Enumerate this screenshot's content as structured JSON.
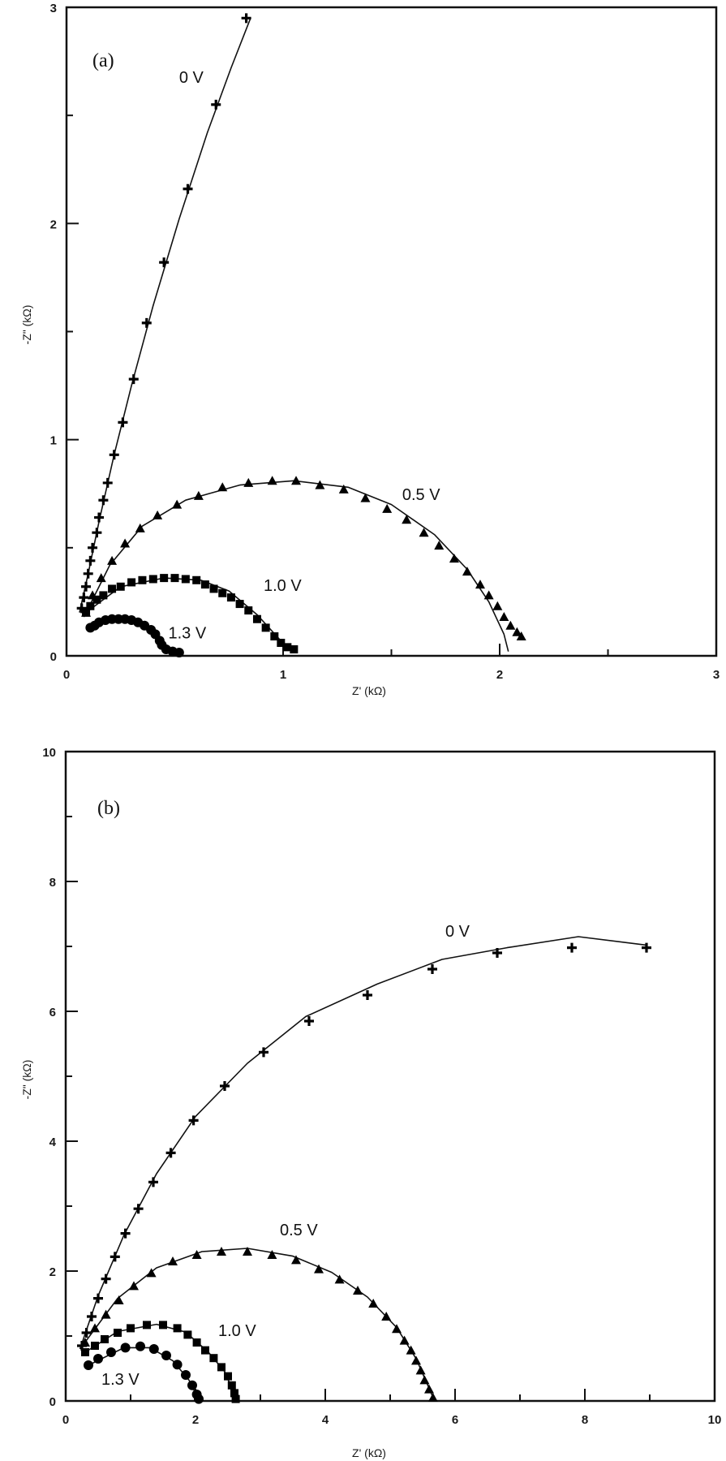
{
  "chart_data": [
    {
      "type": "scatter",
      "panel": "(a)",
      "title": "",
      "xlabel": "Z' (kΩ)",
      "ylabel": "-Z\" (kΩ)",
      "xlim": [
        0,
        3
      ],
      "ylim": [
        0,
        3
      ],
      "xticks": [
        0,
        1,
        2,
        3
      ],
      "yticks": [
        0,
        1,
        2,
        3
      ],
      "minor_ticks": 0.5,
      "grid": false,
      "legend": "inline labels",
      "series": [
        {
          "name": "0 V",
          "marker": "plus",
          "label_pos": [
            0.52,
            2.65
          ],
          "points": [
            [
              0.07,
              0.22
            ],
            [
              0.08,
              0.27
            ],
            [
              0.09,
              0.32
            ],
            [
              0.1,
              0.38
            ],
            [
              0.11,
              0.44
            ],
            [
              0.12,
              0.5
            ],
            [
              0.14,
              0.57
            ],
            [
              0.15,
              0.64
            ],
            [
              0.17,
              0.72
            ],
            [
              0.19,
              0.8
            ],
            [
              0.22,
              0.93
            ],
            [
              0.26,
              1.08
            ],
            [
              0.31,
              1.28
            ],
            [
              0.37,
              1.54
            ],
            [
              0.45,
              1.82
            ],
            [
              0.56,
              2.16
            ],
            [
              0.69,
              2.55
            ],
            [
              0.83,
              2.95
            ]
          ],
          "fit": [
            [
              0.06,
              0.2
            ],
            [
              0.1,
              0.38
            ],
            [
              0.15,
              0.62
            ],
            [
              0.22,
              0.93
            ],
            [
              0.3,
              1.25
            ],
            [
              0.4,
              1.62
            ],
            [
              0.52,
              2.02
            ],
            [
              0.65,
              2.42
            ],
            [
              0.76,
              2.72
            ],
            [
              0.85,
              2.95
            ]
          ]
        },
        {
          "name": "0.5 V",
          "marker": "triangle",
          "label_pos": [
            1.55,
            0.72
          ],
          "points": [
            [
              0.09,
              0.2
            ],
            [
              0.12,
              0.28
            ],
            [
              0.16,
              0.36
            ],
            [
              0.21,
              0.44
            ],
            [
              0.27,
              0.52
            ],
            [
              0.34,
              0.59
            ],
            [
              0.42,
              0.65
            ],
            [
              0.51,
              0.7
            ],
            [
              0.61,
              0.74
            ],
            [
              0.72,
              0.78
            ],
            [
              0.84,
              0.8
            ],
            [
              0.95,
              0.81
            ],
            [
              1.06,
              0.81
            ],
            [
              1.17,
              0.79
            ],
            [
              1.28,
              0.77
            ],
            [
              1.38,
              0.73
            ],
            [
              1.48,
              0.68
            ],
            [
              1.57,
              0.63
            ],
            [
              1.65,
              0.57
            ],
            [
              1.72,
              0.51
            ],
            [
              1.79,
              0.45
            ],
            [
              1.85,
              0.39
            ],
            [
              1.91,
              0.33
            ],
            [
              1.95,
              0.28
            ],
            [
              1.99,
              0.23
            ],
            [
              2.02,
              0.18
            ],
            [
              2.05,
              0.14
            ],
            [
              2.08,
              0.11
            ],
            [
              2.1,
              0.09
            ]
          ],
          "fit": [
            [
              0.08,
              0.18
            ],
            [
              0.2,
              0.42
            ],
            [
              0.35,
              0.6
            ],
            [
              0.55,
              0.72
            ],
            [
              0.8,
              0.79
            ],
            [
              1.05,
              0.81
            ],
            [
              1.3,
              0.78
            ],
            [
              1.5,
              0.7
            ],
            [
              1.7,
              0.56
            ],
            [
              1.85,
              0.4
            ],
            [
              1.95,
              0.25
            ],
            [
              2.02,
              0.1
            ],
            [
              2.04,
              0.02
            ]
          ]
        },
        {
          "name": "1.0 V",
          "marker": "square",
          "label_pos": [
            0.91,
            0.3
          ],
          "points": [
            [
              0.09,
              0.2
            ],
            [
              0.11,
              0.23
            ],
            [
              0.14,
              0.26
            ],
            [
              0.17,
              0.28
            ],
            [
              0.21,
              0.31
            ],
            [
              0.25,
              0.32
            ],
            [
              0.3,
              0.34
            ],
            [
              0.35,
              0.35
            ],
            [
              0.4,
              0.355
            ],
            [
              0.45,
              0.36
            ],
            [
              0.5,
              0.36
            ],
            [
              0.55,
              0.355
            ],
            [
              0.6,
              0.35
            ],
            [
              0.64,
              0.33
            ],
            [
              0.68,
              0.31
            ],
            [
              0.72,
              0.29
            ],
            [
              0.76,
              0.27
            ],
            [
              0.8,
              0.24
            ],
            [
              0.84,
              0.21
            ],
            [
              0.88,
              0.17
            ],
            [
              0.92,
              0.13
            ],
            [
              0.96,
              0.09
            ],
            [
              0.99,
              0.06
            ],
            [
              1.02,
              0.04
            ],
            [
              1.05,
              0.03
            ]
          ],
          "fit": [
            [
              0.09,
              0.2
            ],
            [
              0.25,
              0.32
            ],
            [
              0.45,
              0.36
            ],
            [
              0.62,
              0.35
            ],
            [
              0.75,
              0.3
            ],
            [
              0.88,
              0.19
            ],
            [
              0.98,
              0.08
            ],
            [
              1.04,
              0.02
            ]
          ]
        },
        {
          "name": "1.3 V",
          "marker": "circle",
          "label_pos": [
            0.47,
            0.08
          ],
          "points": [
            [
              0.11,
              0.13
            ],
            [
              0.13,
              0.14
            ],
            [
              0.15,
              0.155
            ],
            [
              0.18,
              0.165
            ],
            [
              0.21,
              0.17
            ],
            [
              0.24,
              0.17
            ],
            [
              0.27,
              0.17
            ],
            [
              0.3,
              0.165
            ],
            [
              0.33,
              0.155
            ],
            [
              0.36,
              0.14
            ],
            [
              0.39,
              0.12
            ],
            [
              0.41,
              0.1
            ],
            [
              0.43,
              0.07
            ],
            [
              0.44,
              0.05
            ],
            [
              0.46,
              0.03
            ],
            [
              0.49,
              0.02
            ],
            [
              0.52,
              0.015
            ]
          ],
          "fit": [
            [
              0.11,
              0.13
            ],
            [
              0.2,
              0.17
            ],
            [
              0.28,
              0.17
            ],
            [
              0.35,
              0.145
            ],
            [
              0.41,
              0.09
            ],
            [
              0.45,
              0.03
            ],
            [
              0.52,
              0.01
            ]
          ]
        }
      ]
    },
    {
      "type": "scatter",
      "panel": "(b)",
      "title": "",
      "xlabel": "Z' (kΩ)",
      "ylabel": "-Z\" (kΩ)",
      "xlim": [
        0,
        10
      ],
      "ylim": [
        0,
        10
      ],
      "xticks": [
        0,
        2,
        4,
        6,
        8,
        10
      ],
      "yticks": [
        0,
        2,
        4,
        6,
        8,
        10
      ],
      "minor_ticks": 1,
      "grid": false,
      "legend": "inline labels",
      "series": [
        {
          "name": "0 V",
          "marker": "plus",
          "label_pos": [
            5.85,
            7.15
          ],
          "points": [
            [
              0.25,
              0.85
            ],
            [
              0.32,
              1.05
            ],
            [
              0.4,
              1.3
            ],
            [
              0.5,
              1.58
            ],
            [
              0.62,
              1.88
            ],
            [
              0.76,
              2.22
            ],
            [
              0.92,
              2.58
            ],
            [
              1.12,
              2.96
            ],
            [
              1.35,
              3.37
            ],
            [
              1.62,
              3.82
            ],
            [
              1.97,
              4.32
            ],
            [
              2.45,
              4.85
            ],
            [
              3.05,
              5.37
            ],
            [
              3.75,
              5.85
            ],
            [
              4.65,
              6.25
            ],
            [
              5.65,
              6.65
            ],
            [
              6.65,
              6.9
            ],
            [
              7.8,
              6.98
            ],
            [
              8.95,
              6.98
            ]
          ],
          "fit": [
            [
              0.22,
              0.8
            ],
            [
              0.5,
              1.62
            ],
            [
              0.9,
              2.56
            ],
            [
              1.4,
              3.5
            ],
            [
              2.0,
              4.38
            ],
            [
              2.8,
              5.2
            ],
            [
              3.7,
              5.92
            ],
            [
              4.8,
              6.42
            ],
            [
              5.8,
              6.8
            ],
            [
              6.8,
              6.98
            ],
            [
              7.9,
              7.15
            ],
            [
              8.95,
              7.02
            ]
          ]
        },
        {
          "name": "0.5 V",
          "marker": "triangle",
          "label_pos": [
            3.3,
            2.55
          ],
          "points": [
            [
              0.3,
              0.9
            ],
            [
              0.45,
              1.12
            ],
            [
              0.62,
              1.33
            ],
            [
              0.82,
              1.55
            ],
            [
              1.05,
              1.77
            ],
            [
              1.32,
              1.97
            ],
            [
              1.65,
              2.15
            ],
            [
              2.02,
              2.25
            ],
            [
              2.4,
              2.3
            ],
            [
              2.8,
              2.3
            ],
            [
              3.18,
              2.25
            ],
            [
              3.55,
              2.17
            ],
            [
              3.9,
              2.03
            ],
            [
              4.22,
              1.87
            ],
            [
              4.5,
              1.7
            ],
            [
              4.74,
              1.5
            ],
            [
              4.94,
              1.3
            ],
            [
              5.1,
              1.11
            ],
            [
              5.22,
              0.93
            ],
            [
              5.32,
              0.78
            ],
            [
              5.4,
              0.62
            ],
            [
              5.47,
              0.47
            ],
            [
              5.53,
              0.32
            ],
            [
              5.6,
              0.18
            ],
            [
              5.66,
              0.05
            ]
          ],
          "fit": [
            [
              0.28,
              0.88
            ],
            [
              0.8,
              1.58
            ],
            [
              1.4,
              2.05
            ],
            [
              2.1,
              2.3
            ],
            [
              2.8,
              2.35
            ],
            [
              3.5,
              2.23
            ],
            [
              4.1,
              1.98
            ],
            [
              4.65,
              1.6
            ],
            [
              5.1,
              1.13
            ],
            [
              5.4,
              0.65
            ],
            [
              5.62,
              0.15
            ],
            [
              5.68,
              0.0
            ]
          ]
        },
        {
          "name": "1.0 V",
          "marker": "square",
          "label_pos": [
            2.35,
            1.0
          ],
          "points": [
            [
              0.3,
              0.75
            ],
            [
              0.45,
              0.85
            ],
            [
              0.6,
              0.95
            ],
            [
              0.8,
              1.05
            ],
            [
              1.0,
              1.12
            ],
            [
              1.25,
              1.17
            ],
            [
              1.5,
              1.17
            ],
            [
              1.72,
              1.12
            ],
            [
              1.88,
              1.02
            ],
            [
              2.02,
              0.9
            ],
            [
              2.15,
              0.78
            ],
            [
              2.28,
              0.66
            ],
            [
              2.4,
              0.52
            ],
            [
              2.5,
              0.38
            ],
            [
              2.56,
              0.24
            ],
            [
              2.6,
              0.12
            ],
            [
              2.62,
              0.03
            ]
          ],
          "fit": [
            [
              0.3,
              0.75
            ],
            [
              0.8,
              1.07
            ],
            [
              1.4,
              1.18
            ],
            [
              1.85,
              1.06
            ],
            [
              2.2,
              0.75
            ],
            [
              2.45,
              0.45
            ],
            [
              2.6,
              0.1
            ],
            [
              2.63,
              0.0
            ]
          ]
        },
        {
          "name": "1.3 V",
          "marker": "circle",
          "label_pos": [
            0.55,
            0.25
          ],
          "points": [
            [
              0.35,
              0.55
            ],
            [
              0.5,
              0.65
            ],
            [
              0.7,
              0.75
            ],
            [
              0.92,
              0.82
            ],
            [
              1.15,
              0.84
            ],
            [
              1.36,
              0.8
            ],
            [
              1.55,
              0.7
            ],
            [
              1.72,
              0.56
            ],
            [
              1.85,
              0.4
            ],
            [
              1.95,
              0.24
            ],
            [
              2.02,
              0.1
            ],
            [
              2.05,
              0.03
            ]
          ],
          "fit": [
            [
              0.35,
              0.55
            ],
            [
              0.9,
              0.82
            ],
            [
              1.3,
              0.82
            ],
            [
              1.65,
              0.62
            ],
            [
              1.9,
              0.32
            ],
            [
              2.05,
              0.02
            ]
          ]
        }
      ]
    }
  ],
  "panels": [
    {
      "label": "(a)",
      "xlabel": "Z' (kΩ)",
      "ylabel": "-Z\" (kΩ)"
    },
    {
      "label": "(b)",
      "xlabel": "Z' (kΩ)",
      "ylabel": "-Z\" (kΩ)"
    }
  ]
}
